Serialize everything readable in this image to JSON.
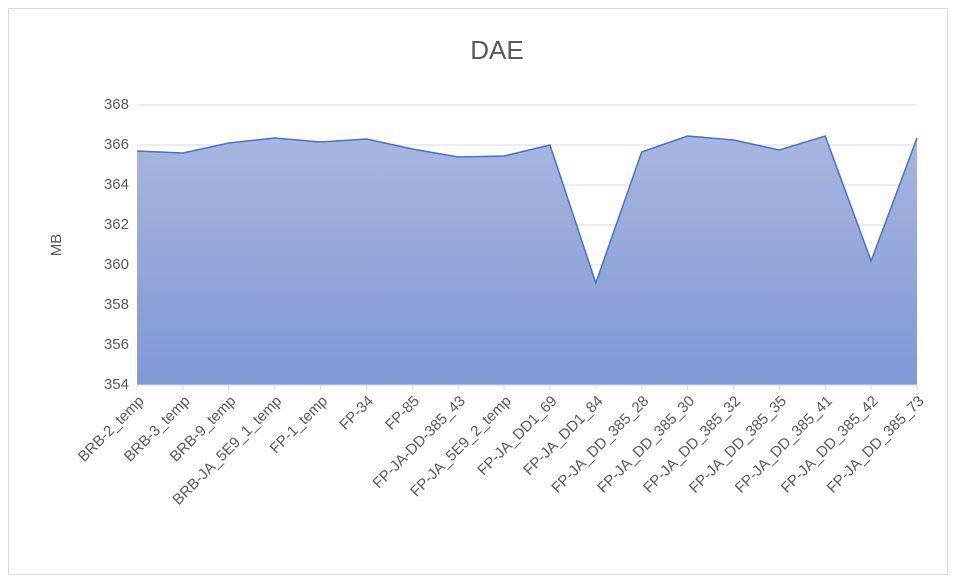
{
  "chart_data": {
    "type": "area",
    "title": "DAE",
    "y_label": "MB",
    "categories": [
      "BRB-2_temp",
      "BRB-3_temp",
      "BRB-9_temp",
      "BRB-JA_5E9_1_temp",
      "FP-1_temp",
      "FP-34",
      "FP-85",
      "FP-JA-DD-385_43",
      "FP-JA_5E9_2_temp",
      "FP-JA_DD1_69",
      "FP-JA_DD1_84",
      "FP-JA_DD_385_28",
      "FP-JA_DD_385_30",
      "FP-JA_DD_385_32",
      "FP-JA_DD_385_35",
      "FP-JA_DD_385_41",
      "FP-JA_DD_385_42",
      "FP-JA_DD_385_73"
    ],
    "values": [
      365.7,
      365.6,
      366.1,
      366.35,
      366.15,
      366.3,
      365.8,
      365.4,
      365.45,
      366.0,
      359.1,
      365.65,
      366.45,
      366.25,
      365.75,
      366.45,
      360.2,
      366.35
    ],
    "color": "#4472c4",
    "ylim": [
      354,
      368
    ],
    "yticks": [
      354,
      356,
      358,
      360,
      362,
      364,
      366,
      368
    ],
    "grid": true
  }
}
